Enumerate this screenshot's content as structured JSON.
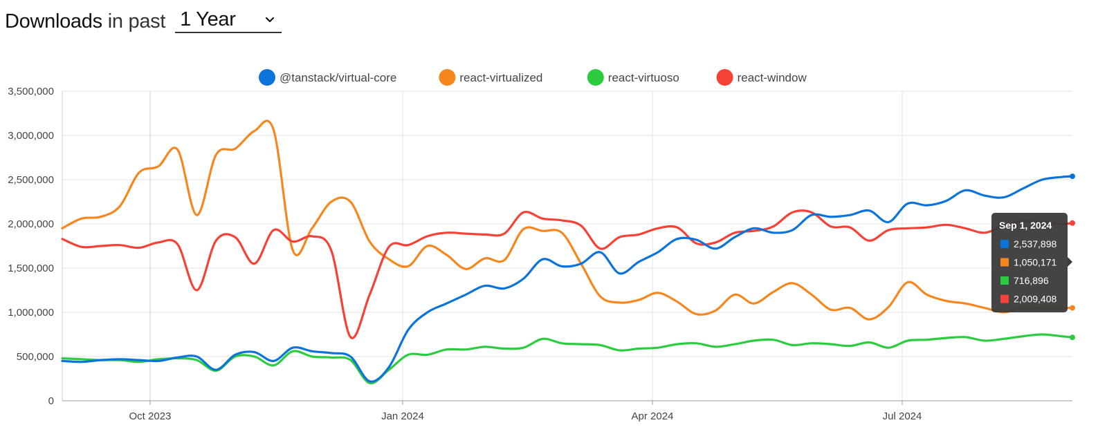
{
  "header": {
    "title": "Downloads",
    "subtitle": "in past",
    "period": {
      "selected": "1 Year"
    },
    "chevron_icon": "chevron-down-icon"
  },
  "chart_data": {
    "type": "line",
    "title": "",
    "xlabel": "",
    "ylabel": "",
    "legend_position": "top-center",
    "grid": true,
    "x_range": [
      "2023-08-30",
      "2024-09-01"
    ],
    "ylim": [
      0,
      3500000
    ],
    "y_ticks": [
      0,
      500000,
      1000000,
      1500000,
      2000000,
      2500000,
      3000000,
      3500000
    ],
    "y_tick_labels": [
      "0",
      "500,000",
      "1,000,000",
      "1,500,000",
      "2,000,000",
      "2,500,000",
      "3,000,000",
      "3,500,000"
    ],
    "x_ticks": [
      {
        "date": "2023-10-01",
        "label": "Oct 2023"
      },
      {
        "date": "2024-01-01",
        "label": "Jan 2024"
      },
      {
        "date": "2024-04-01",
        "label": "Apr 2024"
      },
      {
        "date": "2024-07-01",
        "label": "Jul 2024"
      }
    ],
    "x": [
      "2023-08-30",
      "2023-09-06",
      "2023-09-13",
      "2023-09-20",
      "2023-09-27",
      "2023-10-04",
      "2023-10-11",
      "2023-10-18",
      "2023-10-25",
      "2023-11-01",
      "2023-11-08",
      "2023-11-15",
      "2023-11-22",
      "2023-11-29",
      "2023-12-06",
      "2023-12-13",
      "2023-12-20",
      "2023-12-27",
      "2024-01-03",
      "2024-01-10",
      "2024-01-17",
      "2024-01-24",
      "2024-01-31",
      "2024-02-07",
      "2024-02-14",
      "2024-02-21",
      "2024-02-28",
      "2024-03-06",
      "2024-03-13",
      "2024-03-20",
      "2024-03-27",
      "2024-04-03",
      "2024-04-10",
      "2024-04-17",
      "2024-04-24",
      "2024-05-01",
      "2024-05-08",
      "2024-05-15",
      "2024-05-22",
      "2024-05-29",
      "2024-06-05",
      "2024-06-12",
      "2024-06-19",
      "2024-06-26",
      "2024-07-03",
      "2024-07-10",
      "2024-07-17",
      "2024-07-24",
      "2024-07-31",
      "2024-08-07",
      "2024-08-14",
      "2024-08-21",
      "2024-08-28",
      "2024-09-01"
    ],
    "series": [
      {
        "name": "@tanstack/virtual-core",
        "color": "#0b73da",
        "values": [
          450000,
          440000,
          460000,
          470000,
          460000,
          450000,
          490000,
          500000,
          350000,
          520000,
          550000,
          450000,
          600000,
          560000,
          540000,
          500000,
          220000,
          380000,
          800000,
          1000000,
          1100000,
          1200000,
          1300000,
          1270000,
          1380000,
          1600000,
          1520000,
          1550000,
          1680000,
          1440000,
          1570000,
          1680000,
          1830000,
          1820000,
          1720000,
          1850000,
          1950000,
          1900000,
          1930000,
          2100000,
          2080000,
          2100000,
          2150000,
          2020000,
          2230000,
          2210000,
          2260000,
          2380000,
          2320000,
          2300000,
          2400000,
          2500000,
          2530000,
          2537898
        ]
      },
      {
        "name": "react-virtualized",
        "color": "#f6871f",
        "values": [
          1950000,
          2060000,
          2080000,
          2200000,
          2580000,
          2650000,
          2840000,
          2100000,
          2780000,
          2850000,
          3050000,
          3060000,
          1700000,
          1950000,
          2250000,
          2250000,
          1800000,
          1600000,
          1520000,
          1750000,
          1650000,
          1490000,
          1610000,
          1590000,
          1940000,
          1920000,
          1900000,
          1550000,
          1180000,
          1110000,
          1140000,
          1220000,
          1120000,
          980000,
          1020000,
          1200000,
          1100000,
          1230000,
          1330000,
          1200000,
          1030000,
          1050000,
          920000,
          1060000,
          1340000,
          1200000,
          1130000,
          1100000,
          1050000,
          1000000,
          1050000,
          1050000,
          1050171,
          1050171
        ]
      },
      {
        "name": "react-virtuoso",
        "color": "#2dcc40",
        "values": [
          480000,
          470000,
          460000,
          460000,
          440000,
          470000,
          480000,
          460000,
          340000,
          500000,
          500000,
          400000,
          560000,
          500000,
          490000,
          460000,
          200000,
          350000,
          520000,
          520000,
          580000,
          580000,
          610000,
          590000,
          600000,
          700000,
          650000,
          640000,
          630000,
          570000,
          590000,
          600000,
          640000,
          650000,
          610000,
          640000,
          680000,
          690000,
          630000,
          650000,
          640000,
          620000,
          660000,
          600000,
          680000,
          690000,
          710000,
          720000,
          680000,
          700000,
          730000,
          750000,
          730000,
          716896
        ]
      },
      {
        "name": "react-window",
        "color": "#f64136",
        "values": [
          1830000,
          1740000,
          1750000,
          1760000,
          1730000,
          1790000,
          1770000,
          1250000,
          1810000,
          1850000,
          1550000,
          1930000,
          1800000,
          1860000,
          1700000,
          720000,
          1200000,
          1740000,
          1760000,
          1860000,
          1900000,
          1890000,
          1880000,
          1890000,
          2130000,
          2060000,
          2040000,
          1980000,
          1720000,
          1850000,
          1880000,
          1950000,
          1960000,
          1780000,
          1790000,
          1900000,
          1920000,
          1970000,
          2130000,
          2130000,
          1970000,
          1960000,
          1810000,
          1930000,
          1950000,
          1960000,
          1990000,
          1950000,
          1900000,
          1980000,
          2030000,
          2020000,
          2000000,
          2009408
        ]
      }
    ],
    "tooltip": {
      "title": "Sep 1, 2024",
      "values": [
        "2,537,898",
        "1,050,171",
        "716,896",
        "2,009,408"
      ]
    }
  }
}
